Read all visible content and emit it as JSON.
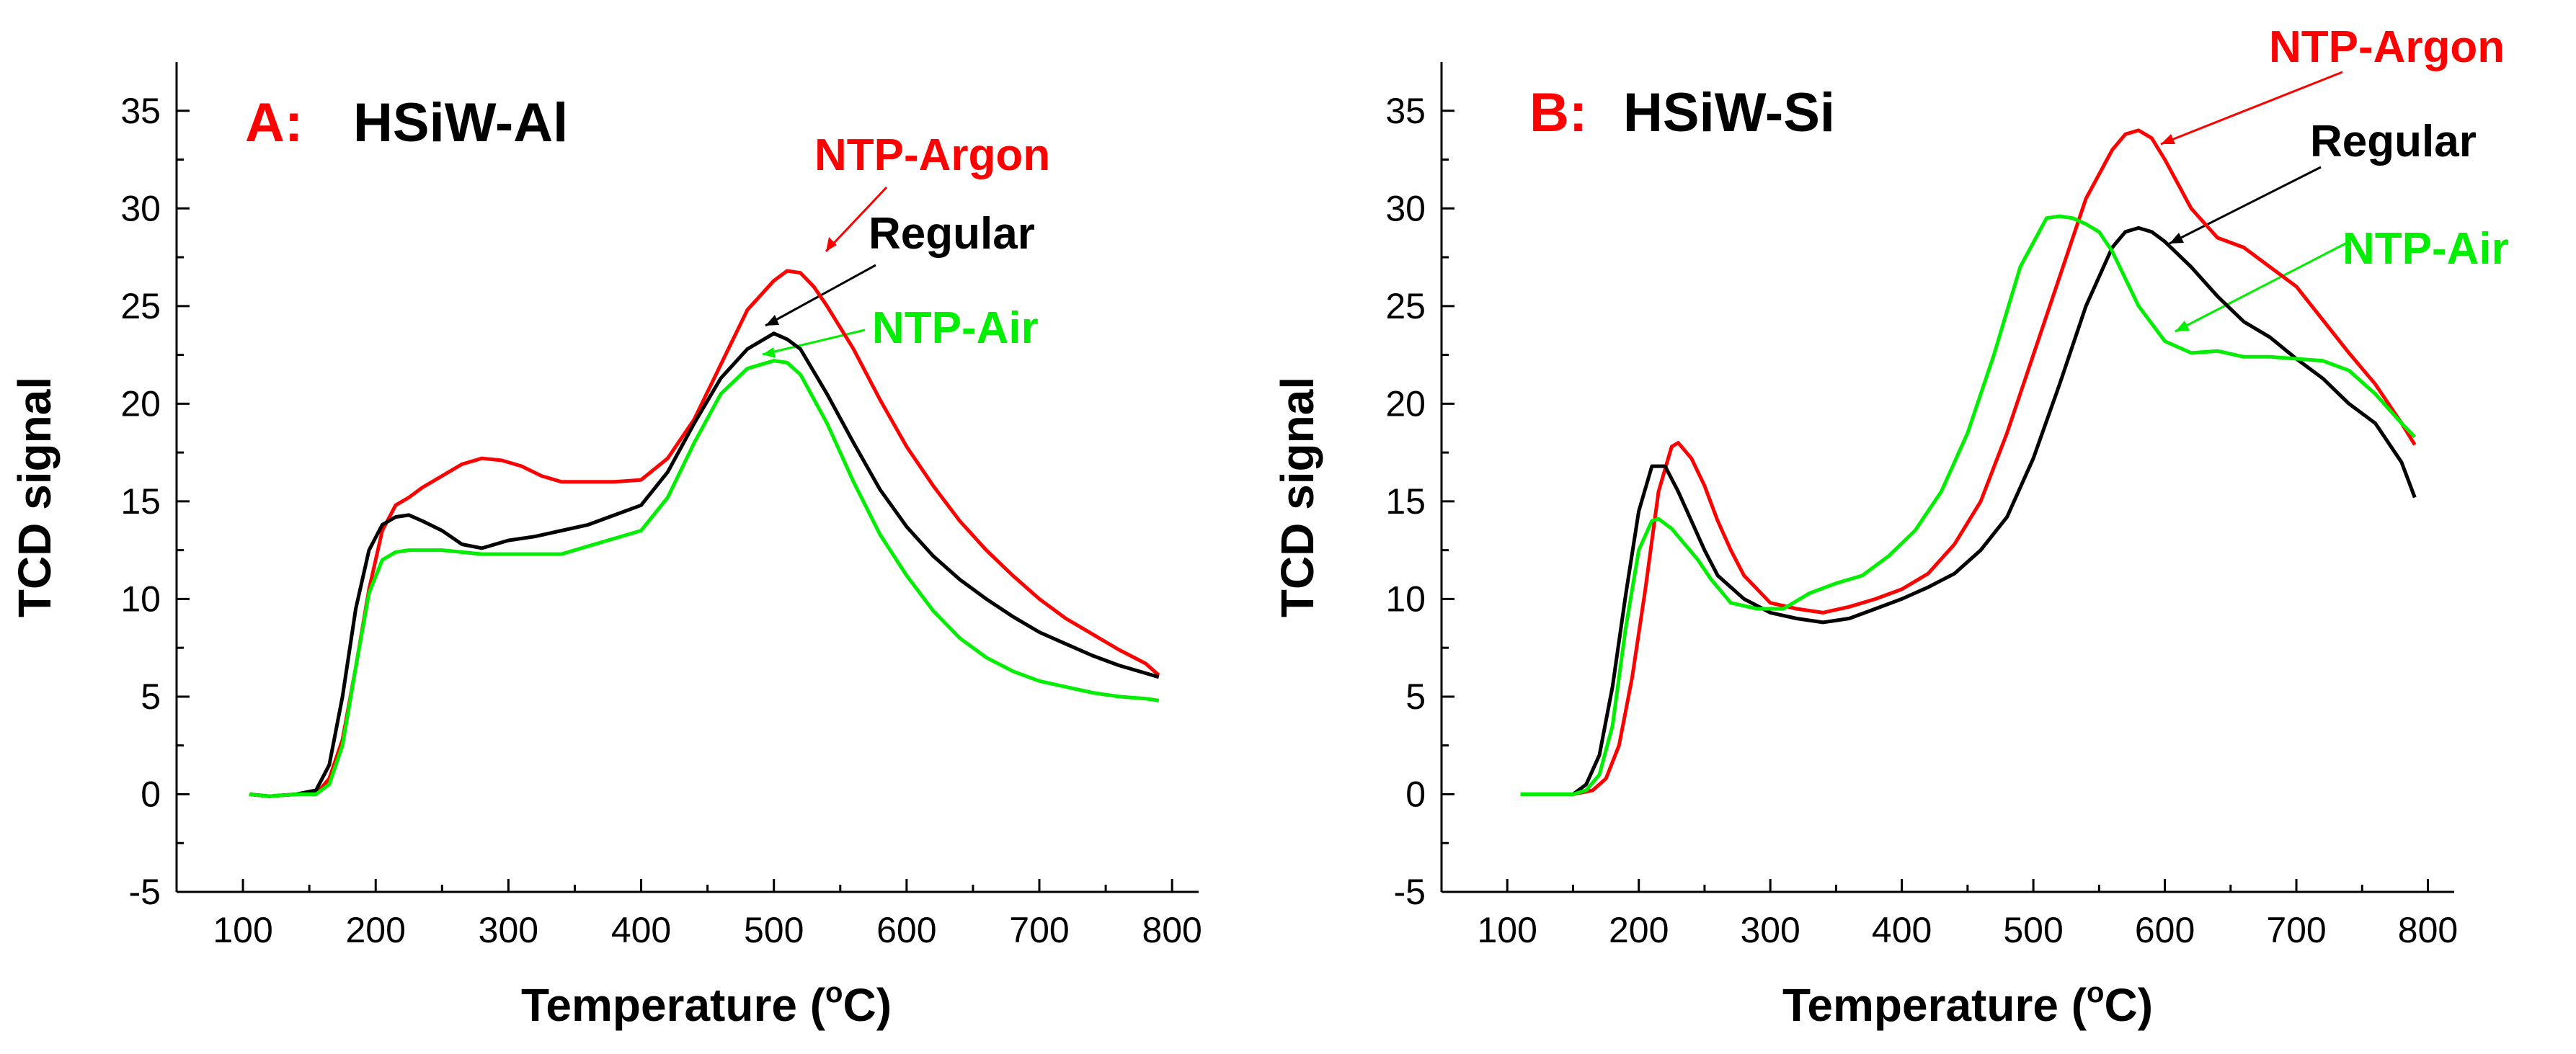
{
  "chart_data": [
    {
      "type": "line",
      "panel_letter": "A:",
      "panel_name": "HSiW-Al",
      "xlabel": "Temperature (°C)",
      "xlabel_main": "Temperature (",
      "xlabel_sup": "o",
      "xlabel_end": "C)",
      "ylabel": "TCD signal",
      "xlim": [
        50,
        820
      ],
      "ylim": [
        -5,
        37.5
      ],
      "xticks": [
        100,
        200,
        300,
        400,
        500,
        600,
        700,
        800
      ],
      "yticks": [
        -5,
        0,
        5,
        10,
        15,
        20,
        25,
        30,
        35
      ],
      "series": [
        {
          "name": "NTP-Argon",
          "color": "#ff0000",
          "x": [
            105,
            120,
            140,
            155,
            165,
            175,
            185,
            195,
            205,
            215,
            225,
            235,
            250,
            265,
            280,
            295,
            310,
            325,
            340,
            360,
            380,
            400,
            420,
            440,
            460,
            480,
            500,
            510,
            520,
            530,
            540,
            560,
            580,
            600,
            620,
            640,
            660,
            680,
            700,
            720,
            740,
            760,
            780,
            790
          ],
          "y": [
            0,
            -0.1,
            0,
            0,
            0.8,
            2.8,
            6.5,
            10.5,
            13.5,
            14.8,
            15.2,
            15.7,
            16.3,
            16.9,
            17.2,
            17.1,
            16.8,
            16.3,
            16,
            16,
            16,
            16.1,
            17.2,
            19.2,
            22,
            24.8,
            26.3,
            26.8,
            26.7,
            26,
            25,
            22.8,
            20.2,
            17.8,
            15.8,
            14,
            12.5,
            11.2,
            10,
            9,
            8.2,
            7.4,
            6.7,
            6.1
          ]
        },
        {
          "name": "Regular",
          "color": "#000000",
          "x": [
            105,
            120,
            140,
            155,
            165,
            175,
            185,
            195,
            205,
            215,
            225,
            235,
            250,
            265,
            280,
            300,
            320,
            340,
            360,
            380,
            400,
            420,
            440,
            460,
            480,
            500,
            510,
            520,
            540,
            560,
            580,
            600,
            620,
            640,
            660,
            680,
            700,
            720,
            740,
            760,
            780,
            790
          ],
          "y": [
            0,
            -0.1,
            0,
            0.2,
            1.5,
            5,
            9.5,
            12.5,
            13.8,
            14.2,
            14.3,
            14,
            13.5,
            12.8,
            12.6,
            13,
            13.2,
            13.5,
            13.8,
            14.3,
            14.8,
            16.5,
            19,
            21.3,
            22.8,
            23.6,
            23.3,
            22.8,
            20.5,
            18,
            15.6,
            13.7,
            12.2,
            11,
            10,
            9.1,
            8.3,
            7.7,
            7.1,
            6.6,
            6.2,
            6
          ]
        },
        {
          "name": "NTP-Air",
          "color": "#00ee00",
          "x": [
            105,
            120,
            140,
            155,
            165,
            175,
            185,
            195,
            205,
            215,
            225,
            235,
            250,
            265,
            280,
            300,
            320,
            340,
            360,
            380,
            400,
            420,
            440,
            460,
            480,
            500,
            510,
            520,
            540,
            560,
            580,
            600,
            620,
            640,
            660,
            680,
            700,
            720,
            740,
            760,
            780,
            790
          ],
          "y": [
            0,
            -0.1,
            0,
            0,
            0.5,
            2.5,
            6.5,
            10.3,
            12,
            12.4,
            12.5,
            12.5,
            12.5,
            12.4,
            12.3,
            12.3,
            12.3,
            12.3,
            12.7,
            13.1,
            13.5,
            15.2,
            18,
            20.5,
            21.8,
            22.2,
            22.1,
            21.5,
            19,
            16,
            13.3,
            11.2,
            9.4,
            8,
            7,
            6.3,
            5.8,
            5.5,
            5.2,
            5,
            4.9,
            4.8
          ]
        }
      ],
      "annotations": [
        {
          "text": "NTP-Argon",
          "color": "#ff0000"
        },
        {
          "text": "Regular",
          "color": "#000000"
        },
        {
          "text": "NTP-Air",
          "color": "#00ee00"
        }
      ]
    },
    {
      "type": "line",
      "panel_letter": "B:",
      "panel_name": "HSiW-Si",
      "xlabel": "Temperature (°C)",
      "xlabel_main": "Temperature (",
      "xlabel_sup": "o",
      "xlabel_end": "C)",
      "ylabel": "TCD signal",
      "xlim": [
        50,
        820
      ],
      "ylim": [
        -5,
        37.5
      ],
      "xticks": [
        100,
        200,
        300,
        400,
        500,
        600,
        700,
        800
      ],
      "yticks": [
        -5,
        0,
        5,
        10,
        15,
        20,
        25,
        30,
        35
      ],
      "series": [
        {
          "name": "NTP-Argon",
          "color": "#ff0000",
          "x": [
            110,
            130,
            150,
            165,
            175,
            185,
            195,
            205,
            215,
            225,
            230,
            240,
            250,
            260,
            270,
            280,
            300,
            320,
            340,
            360,
            380,
            400,
            420,
            440,
            460,
            480,
            500,
            520,
            540,
            560,
            570,
            580,
            590,
            600,
            620,
            640,
            660,
            680,
            700,
            720,
            740,
            760,
            780,
            790
          ],
          "y": [
            0,
            0,
            0,
            0.2,
            0.8,
            2.5,
            6,
            10.5,
            15.5,
            17.8,
            18,
            17.2,
            15.8,
            14,
            12.5,
            11.2,
            9.8,
            9.5,
            9.3,
            9.6,
            10,
            10.5,
            11.3,
            12.8,
            15,
            18.5,
            22.5,
            26.5,
            30.5,
            33,
            33.8,
            34,
            33.6,
            32.5,
            30,
            28.5,
            28,
            27,
            26,
            24.3,
            22.6,
            21,
            19,
            17.9
          ]
        },
        {
          "name": "Regular",
          "color": "#000000",
          "x": [
            110,
            130,
            150,
            160,
            170,
            180,
            190,
            200,
            210,
            220,
            230,
            240,
            250,
            260,
            280,
            300,
            320,
            340,
            360,
            380,
            400,
            420,
            440,
            460,
            480,
            500,
            520,
            540,
            560,
            570,
            580,
            590,
            600,
            620,
            640,
            660,
            680,
            700,
            720,
            740,
            760,
            780,
            790
          ],
          "y": [
            0,
            0,
            0,
            0.5,
            2,
            5.5,
            10.2,
            14.5,
            16.8,
            16.8,
            15.5,
            14,
            12.5,
            11.2,
            10,
            9.3,
            9,
            8.8,
            9,
            9.5,
            10,
            10.6,
            11.3,
            12.5,
            14.2,
            17.2,
            21,
            25,
            28,
            28.8,
            29,
            28.8,
            28.3,
            27,
            25.5,
            24.2,
            23.4,
            22.3,
            21.3,
            20,
            19,
            17,
            15.2
          ]
        },
        {
          "name": "NTP-Air",
          "color": "#00ee00",
          "x": [
            110,
            130,
            150,
            160,
            170,
            180,
            190,
            200,
            210,
            215,
            225,
            235,
            245,
            255,
            270,
            290,
            310,
            330,
            350,
            370,
            390,
            410,
            430,
            450,
            470,
            490,
            510,
            520,
            530,
            540,
            550,
            560,
            580,
            600,
            620,
            640,
            660,
            680,
            700,
            720,
            740,
            760,
            780,
            790
          ],
          "y": [
            0,
            0,
            0,
            0.2,
            1,
            3.5,
            8.5,
            12.5,
            14,
            14.1,
            13.6,
            12.8,
            12,
            11,
            9.8,
            9.5,
            9.5,
            10.3,
            10.8,
            11.2,
            12.2,
            13.5,
            15.5,
            18.5,
            22.5,
            27,
            29.5,
            29.6,
            29.5,
            29.2,
            28.8,
            27.8,
            25,
            23.2,
            22.6,
            22.7,
            22.4,
            22.4,
            22.3,
            22.2,
            21.7,
            20.5,
            19,
            18.3
          ]
        }
      ],
      "annotations": [
        {
          "text": "NTP-Argon",
          "color": "#ff0000"
        },
        {
          "text": "Regular",
          "color": "#000000"
        },
        {
          "text": "NTP-Air",
          "color": "#00ee00"
        }
      ]
    }
  ]
}
